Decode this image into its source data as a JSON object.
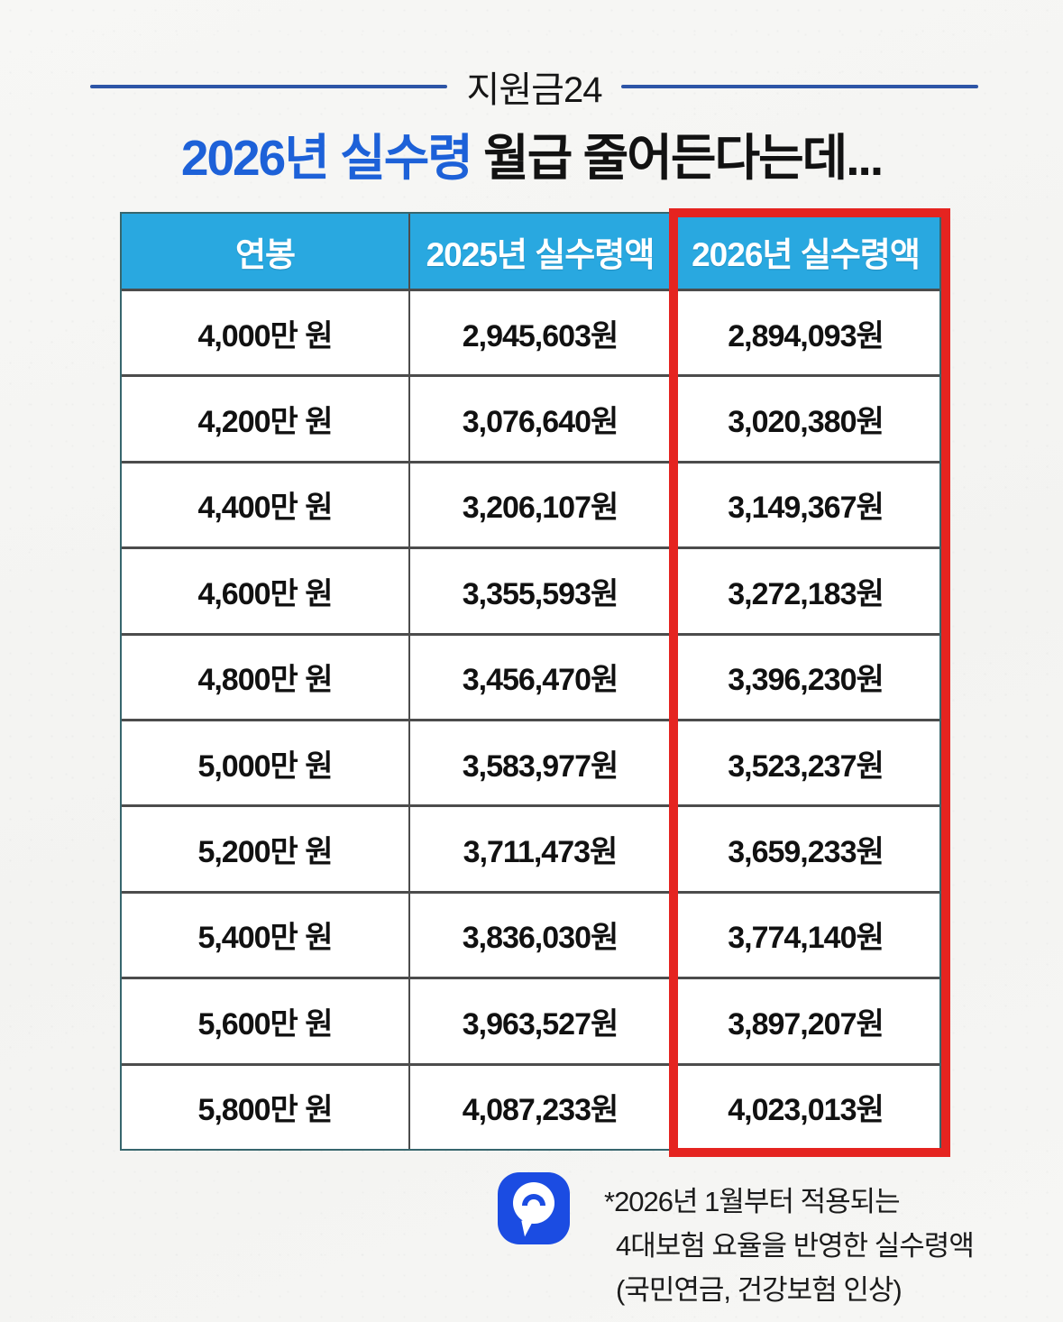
{
  "header": {
    "badge": "지원금24",
    "title_highlight": "2026년 실수령",
    "title_rest": " 월급 줄어든다는데..."
  },
  "table": {
    "columns": [
      "연봉",
      "2025년 실수령액",
      "2026년 실수령액"
    ],
    "highlighted_column": "2026년 실수령액",
    "rows": [
      [
        "4,000만 원",
        "2,945,603원",
        "2,894,093원"
      ],
      [
        "4,200만 원",
        "3,076,640원",
        "3,020,380원"
      ],
      [
        "4,400만 원",
        "3,206,107원",
        "3,149,367원"
      ],
      [
        "4,600만 원",
        "3,355,593원",
        "3,272,183원"
      ],
      [
        "4,800만 원",
        "3,456,470원",
        "3,396,230원"
      ],
      [
        "5,000만 원",
        "3,583,977원",
        "3,523,237원"
      ],
      [
        "5,200만 원",
        "3,711,473원",
        "3,659,233원"
      ],
      [
        "5,400만 원",
        "3,836,030원",
        "3,774,140원"
      ],
      [
        "5,600만 원",
        "3,963,527원",
        "3,897,207원"
      ],
      [
        "5,800만 원",
        "4,087,233원",
        "4,023,013원"
      ]
    ]
  },
  "footnote": {
    "line1": "*2026년 1월부터 적용되는",
    "line2": "4대보험 요율을 반영한 실수령액",
    "line3": "(국민연금, 건강보험 인상)"
  },
  "colors": {
    "table_header_bg": "#29a8e0",
    "highlight_border": "#e52420",
    "title_blue": "#1d61d8",
    "badge_line_blue": "#2d55a6",
    "logo_blue": "#1b4ce2",
    "table_outer_border": "#37666d"
  },
  "chart_data": {
    "type": "table",
    "title": "2026년 실수령 월급 줄어든다는데...",
    "source_badge": "지원금24",
    "columns": [
      "연봉",
      "2025년 실수령액",
      "2026년 실수령액"
    ],
    "rows": [
      {
        "연봉": "4,000만 원",
        "2025년 실수령액": 2945603,
        "2026년 실수령액": 2894093
      },
      {
        "연봉": "4,200만 원",
        "2025년 실수령액": 3076640,
        "2026년 실수령액": 3020380
      },
      {
        "연봉": "4,400만 원",
        "2025년 실수령액": 3206107,
        "2026년 실수령액": 3149367
      },
      {
        "연봉": "4,600만 원",
        "2025년 실수령액": 3355593,
        "2026년 실수령액": 3272183
      },
      {
        "연봉": "4,800만 원",
        "2025년 실수령액": 3456470,
        "2026년 실수령액": 3396230
      },
      {
        "연봉": "5,000만 원",
        "2025년 실수령액": 3583977,
        "2026년 실수령액": 3523237
      },
      {
        "연봉": "5,200만 원",
        "2025년 실수령액": 3711473,
        "2026년 실수령액": 3659233
      },
      {
        "연봉": "5,400만 원",
        "2025년 실수령액": 3836030,
        "2026년 실수령액": 3774140
      },
      {
        "연봉": "5,600만 원",
        "2025년 실수령액": 3963527,
        "2026년 실수령액": 3897207
      },
      {
        "연봉": "5,800만 원",
        "2025년 실수령액": 4087233,
        "2026년 실수령액": 4023013
      }
    ],
    "annotation": "*2026년 1월부터 적용되는 4대보험 요율을 반영한 실수령액 (국민연금, 건강보험 인상)",
    "layout_hints": {
      "highlighted_column": "2026년 실수령액",
      "highlight_style": "red-border"
    }
  }
}
